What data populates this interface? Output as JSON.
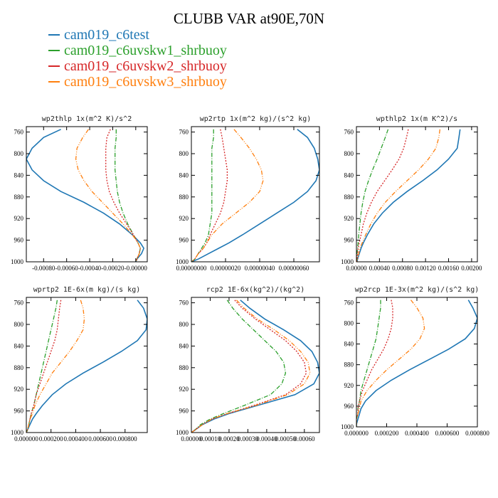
{
  "title": "CLUBB VAR at90E,70N",
  "legend": [
    {
      "label": "cam019_c6test",
      "color": "#1f77b4"
    },
    {
      "label": "cam019_c6uvskw1_shrbuoy",
      "color": "#2ca02c"
    },
    {
      "label": "cam019_c6uvskw2_shrbuoy",
      "color": "#d62728"
    },
    {
      "label": "cam019_c6uvskw3_shrbuoy",
      "color": "#ff7f0e"
    }
  ],
  "chart_data": [
    {
      "type": "line",
      "title": "wp2thlp  1x(m^2 K)/s^2",
      "xlim": [
        -0.00095,
        0.0001
      ],
      "ylim": [
        1000,
        750
      ],
      "yticks": [
        "760",
        "800",
        "840",
        "880",
        "920",
        "960",
        "1000"
      ],
      "xticks": [
        "-0.00080",
        "-0.00060",
        "-0.00040",
        "-0.00020",
        "-0.00000"
      ],
      "y": [
        755,
        770,
        790,
        810,
        830,
        850,
        870,
        890,
        910,
        930,
        950,
        965,
        975,
        985,
        995,
        1000
      ],
      "series": [
        {
          "name": "cam019_c6test",
          "x": [
            -0.00065,
            -0.0008,
            -0.0009,
            -0.00095,
            -0.0009,
            -0.0008,
            -0.00065,
            -0.00045,
            -0.00028,
            -0.00014,
            -3e-05,
            4e-05,
            7e-05,
            5e-05,
            1e-05,
            0.0
          ]
        },
        {
          "name": "cam019_c6uvskw1_shrbuoy",
          "x": [
            -0.00017,
            -0.00017,
            -0.00018,
            -0.00018,
            -0.00018,
            -0.00017,
            -0.00016,
            -0.00014,
            -0.00011,
            -7e-05,
            -2e-05,
            2e-05,
            4e-05,
            3e-05,
            1e-05,
            0.0
          ]
        },
        {
          "name": "cam019_c6uvskw2_shrbuoy",
          "x": [
            -0.00022,
            -0.00025,
            -0.00026,
            -0.00026,
            -0.00026,
            -0.00025,
            -0.00023,
            -0.00019,
            -0.00014,
            -8e-05,
            -2e-05,
            2e-05,
            4e-05,
            3e-05,
            1e-05,
            0.0
          ]
        },
        {
          "name": "cam019_c6uvskw3_shrbuoy",
          "x": [
            -0.00041,
            -0.00046,
            -0.00051,
            -0.00052,
            -0.0005,
            -0.00045,
            -0.00038,
            -0.00029,
            -0.0002,
            -0.00011,
            -3e-05,
            2e-05,
            4e-05,
            3e-05,
            1e-05,
            0.0
          ]
        }
      ]
    },
    {
      "type": "line",
      "title": "wp2rtp  1x(m^2 kg)/(s^2 kg)",
      "xlim": [
        0,
        7.5e-07
      ],
      "ylim": [
        1000,
        750
      ],
      "yticks": [
        "760",
        "800",
        "840",
        "880",
        "920",
        "960",
        "1000"
      ],
      "xticks": [
        "0.00000000",
        "0.00000020",
        "0.00000040",
        "0.00000060"
      ],
      "y": [
        755,
        770,
        790,
        810,
        830,
        850,
        870,
        890,
        910,
        930,
        950,
        965,
        975,
        985,
        995,
        1000
      ],
      "series": [
        {
          "name": "cam019_c6test",
          "x": [
            6.2e-07,
            6.8e-07,
            7.2e-07,
            7.4e-07,
            7.5e-07,
            7.3e-07,
            6.8e-07,
            6e-07,
            5e-07,
            4e-07,
            3e-07,
            2.2e-07,
            1.6e-07,
            1e-07,
            4e-08,
            0.0
          ]
        },
        {
          "name": "cam019_c6uvskw1_shrbuoy",
          "x": [
            1.3e-07,
            1.3e-07,
            1.2e-07,
            1.2e-07,
            1.2e-07,
            1.2e-07,
            1.2e-07,
            1.2e-07,
            1.2e-07,
            1.1e-07,
            1e-07,
            8e-08,
            6e-08,
            4e-08,
            2e-08,
            0.0
          ]
        },
        {
          "name": "cam019_c6uvskw2_shrbuoy",
          "x": [
            1.7e-07,
            1.8e-07,
            1.9e-07,
            2e-07,
            2.1e-07,
            2.1e-07,
            2e-07,
            1.9e-07,
            1.7e-07,
            1.4e-07,
            1.1e-07,
            9e-08,
            7e-08,
            4e-08,
            2e-08,
            0.0
          ]
        },
        {
          "name": "cam019_c6uvskw3_shrbuoy",
          "x": [
            2.5e-07,
            2.9e-07,
            3.4e-07,
            3.8e-07,
            4.1e-07,
            4.2e-07,
            4e-07,
            3.4e-07,
            2.6e-07,
            1.8e-07,
            1.2e-07,
            9e-08,
            7e-08,
            4e-08,
            2e-08,
            0.0
          ]
        }
      ]
    },
    {
      "type": "line",
      "title": "wpthlp2  1x(m K^2)/s",
      "xlim": [
        0,
        0.0021
      ],
      "ylim": [
        1000,
        750
      ],
      "yticks": [
        "760",
        "800",
        "840",
        "880",
        "920",
        "960",
        "1000"
      ],
      "xticks": [
        "0.00000",
        "0.00040",
        "0.00080",
        "0.00120",
        "0.00160",
        "0.00200"
      ],
      "y": [
        755,
        770,
        790,
        810,
        830,
        850,
        870,
        890,
        910,
        930,
        950,
        965,
        975,
        985,
        995,
        1000
      ],
      "series": [
        {
          "name": "cam019_c6test",
          "x": [
            0.0018,
            0.00178,
            0.00175,
            0.0016,
            0.0014,
            0.00115,
            0.00088,
            0.00064,
            0.00045,
            0.0003,
            0.00019,
            0.00012,
            8e-05,
            5e-05,
            2e-05,
            1e-05
          ]
        },
        {
          "name": "cam019_c6uvskw1_shrbuoy",
          "x": [
            0.00055,
            0.0005,
            0.00043,
            0.00036,
            0.00028,
            0.00021,
            0.00015,
            0.00011,
            8e-05,
            6e-05,
            4e-05,
            3e-05,
            2e-05,
            1e-05,
            1e-05,
            0.0
          ]
        },
        {
          "name": "cam019_c6uvskw2_shrbuoy",
          "x": [
            0.0009,
            0.00087,
            0.00082,
            0.00074,
            0.00062,
            0.00049,
            0.00036,
            0.00026,
            0.00018,
            0.00012,
            8e-05,
            5e-05,
            3e-05,
            2e-05,
            1e-05,
            0.0
          ]
        },
        {
          "name": "cam019_c6uvskw3_shrbuoy",
          "x": [
            0.00145,
            0.00143,
            0.00138,
            0.00125,
            0.00108,
            0.00088,
            0.00068,
            0.0005,
            0.00036,
            0.00025,
            0.00016,
            0.0001,
            6e-05,
            4e-05,
            2e-05,
            1e-05
          ]
        }
      ]
    },
    {
      "type": "line",
      "title": "wprtp2  1E-6x(m kg)/(s kg)",
      "xlim": [
        0,
        0.00098
      ],
      "ylim": [
        1000,
        750
      ],
      "yticks": [
        "760",
        "800",
        "840",
        "880",
        "920",
        "960",
        "1000"
      ],
      "xticks": [
        "0.000000",
        "0.000200",
        "0.000400",
        "0.000600",
        "0.000800"
      ],
      "y": [
        755,
        770,
        790,
        810,
        830,
        850,
        870,
        890,
        910,
        930,
        950,
        965,
        975,
        985,
        995,
        1000
      ],
      "series": [
        {
          "name": "cam019_c6test",
          "x": [
            0.0009,
            0.00095,
            0.00098,
            0.00097,
            0.0009,
            0.00077,
            0.00062,
            0.00046,
            0.00032,
            0.00021,
            0.00013,
            8e-05,
            5e-05,
            3e-05,
            1e-05,
            0.0
          ]
        },
        {
          "name": "cam019_c6uvskw1_shrbuoy",
          "x": [
            0.00025,
            0.00024,
            0.00022,
            0.0002,
            0.00018,
            0.00016,
            0.00014,
            0.00012,
            0.0001,
            8e-05,
            6e-05,
            4e-05,
            3e-05,
            2e-05,
            1e-05,
            0.0
          ]
        },
        {
          "name": "cam019_c6uvskw2_shrbuoy",
          "x": [
            0.00028,
            0.00027,
            0.00026,
            0.00025,
            0.00023,
            0.0002,
            0.00017,
            0.00014,
            0.00011,
            8e-05,
            6e-05,
            4e-05,
            3e-05,
            2e-05,
            1e-05,
            0.0
          ]
        },
        {
          "name": "cam019_c6uvskw3_shrbuoy",
          "x": [
            0.00044,
            0.00046,
            0.00047,
            0.00046,
            0.00041,
            0.00035,
            0.00028,
            0.00021,
            0.00016,
            0.00011,
            7e-05,
            5e-05,
            3e-05,
            2e-05,
            1e-05,
            0.0
          ]
        }
      ]
    },
    {
      "type": "line",
      "title": "rcp2  1E-6x(kg^2)/(kg^2)",
      "xlim": [
        0,
        0.00068
      ],
      "ylim": [
        1000,
        750
      ],
      "yticks": [
        "760",
        "800",
        "840",
        "880",
        "920",
        "960",
        "1000"
      ],
      "xticks": [
        "0.00000",
        "0.00010",
        "0.00020",
        "0.00030",
        "0.00040",
        "0.00050",
        "0.00060"
      ],
      "y": [
        755,
        770,
        790,
        810,
        830,
        850,
        870,
        890,
        910,
        930,
        950,
        965,
        975,
        985,
        995,
        1000
      ],
      "series": [
        {
          "name": "cam019_c6test",
          "x": [
            0.00026,
            0.00031,
            0.00039,
            0.00049,
            0.00058,
            0.00064,
            0.00067,
            0.00068,
            0.00065,
            0.00055,
            0.00035,
            0.0002,
            0.00012,
            6e-05,
            2e-05,
            0.0
          ]
        },
        {
          "name": "cam019_c6uvskw1_shrbuoy",
          "x": [
            0.00019,
            0.00022,
            0.00027,
            0.00033,
            0.00039,
            0.00045,
            0.00049,
            0.0005,
            0.00048,
            0.00042,
            0.00028,
            0.00017,
            0.0001,
            5e-05,
            2e-05,
            0.0
          ]
        },
        {
          "name": "cam019_c6uvskw2_shrbuoy",
          "x": [
            0.00023,
            0.00027,
            0.00034,
            0.00042,
            0.0005,
            0.00056,
            0.0006,
            0.00061,
            0.00058,
            0.0005,
            0.00033,
            0.00019,
            0.00011,
            6e-05,
            2e-05,
            0.0
          ]
        },
        {
          "name": "cam019_c6uvskw3_shrbuoy",
          "x": [
            0.00024,
            0.00028,
            0.00035,
            0.00044,
            0.00052,
            0.00058,
            0.00062,
            0.00063,
            0.0006,
            0.00051,
            0.00034,
            0.00019,
            0.00011,
            6e-05,
            2e-05,
            0.0
          ]
        }
      ]
    },
    {
      "type": "line",
      "title": "wp2rcp  1E-3x(m^2 kg)/(s^2 kg)",
      "xlim": [
        0,
        0.0008
      ],
      "ylim": [
        1000,
        750
      ],
      "yticks": [
        "760",
        "800",
        "840",
        "880",
        "920",
        "960",
        "1000"
      ],
      "xticks": [
        "0.000000",
        "0.000200",
        "0.000400",
        "0.000600",
        "0.000800"
      ],
      "y": [
        755,
        770,
        790,
        810,
        830,
        850,
        870,
        890,
        910,
        930,
        950,
        965,
        975,
        985,
        995,
        1000
      ],
      "series": [
        {
          "name": "cam019_c6test",
          "x": [
            0.00074,
            0.00077,
            0.0008,
            0.00078,
            0.00072,
            0.00061,
            0.00048,
            0.00035,
            0.00023,
            0.00013,
            6e-05,
            3e-05,
            2e-05,
            1e-05,
            0.0,
            0.0
          ]
        },
        {
          "name": "cam019_c6uvskw1_shrbuoy",
          "x": [
            0.00016,
            0.00016,
            0.00015,
            0.00014,
            0.00013,
            0.00011,
            9e-05,
            7e-05,
            5e-05,
            3e-05,
            2e-05,
            1e-05,
            1e-05,
            0.0,
            0.0,
            0.0
          ]
        },
        {
          "name": "cam019_c6uvskw2_shrbuoy",
          "x": [
            0.00023,
            0.00024,
            0.00024,
            0.00023,
            0.00021,
            0.00018,
            0.00014,
            0.0001,
            7e-05,
            4e-05,
            2e-05,
            1e-05,
            1e-05,
            0.0,
            0.0,
            0.0
          ]
        },
        {
          "name": "cam019_c6uvskw3_shrbuoy",
          "x": [
            0.00036,
            0.0004,
            0.00044,
            0.00045,
            0.00042,
            0.00036,
            0.00028,
            0.0002,
            0.00013,
            7e-05,
            3e-05,
            2e-05,
            1e-05,
            0.0,
            0.0,
            0.0
          ]
        }
      ]
    }
  ]
}
